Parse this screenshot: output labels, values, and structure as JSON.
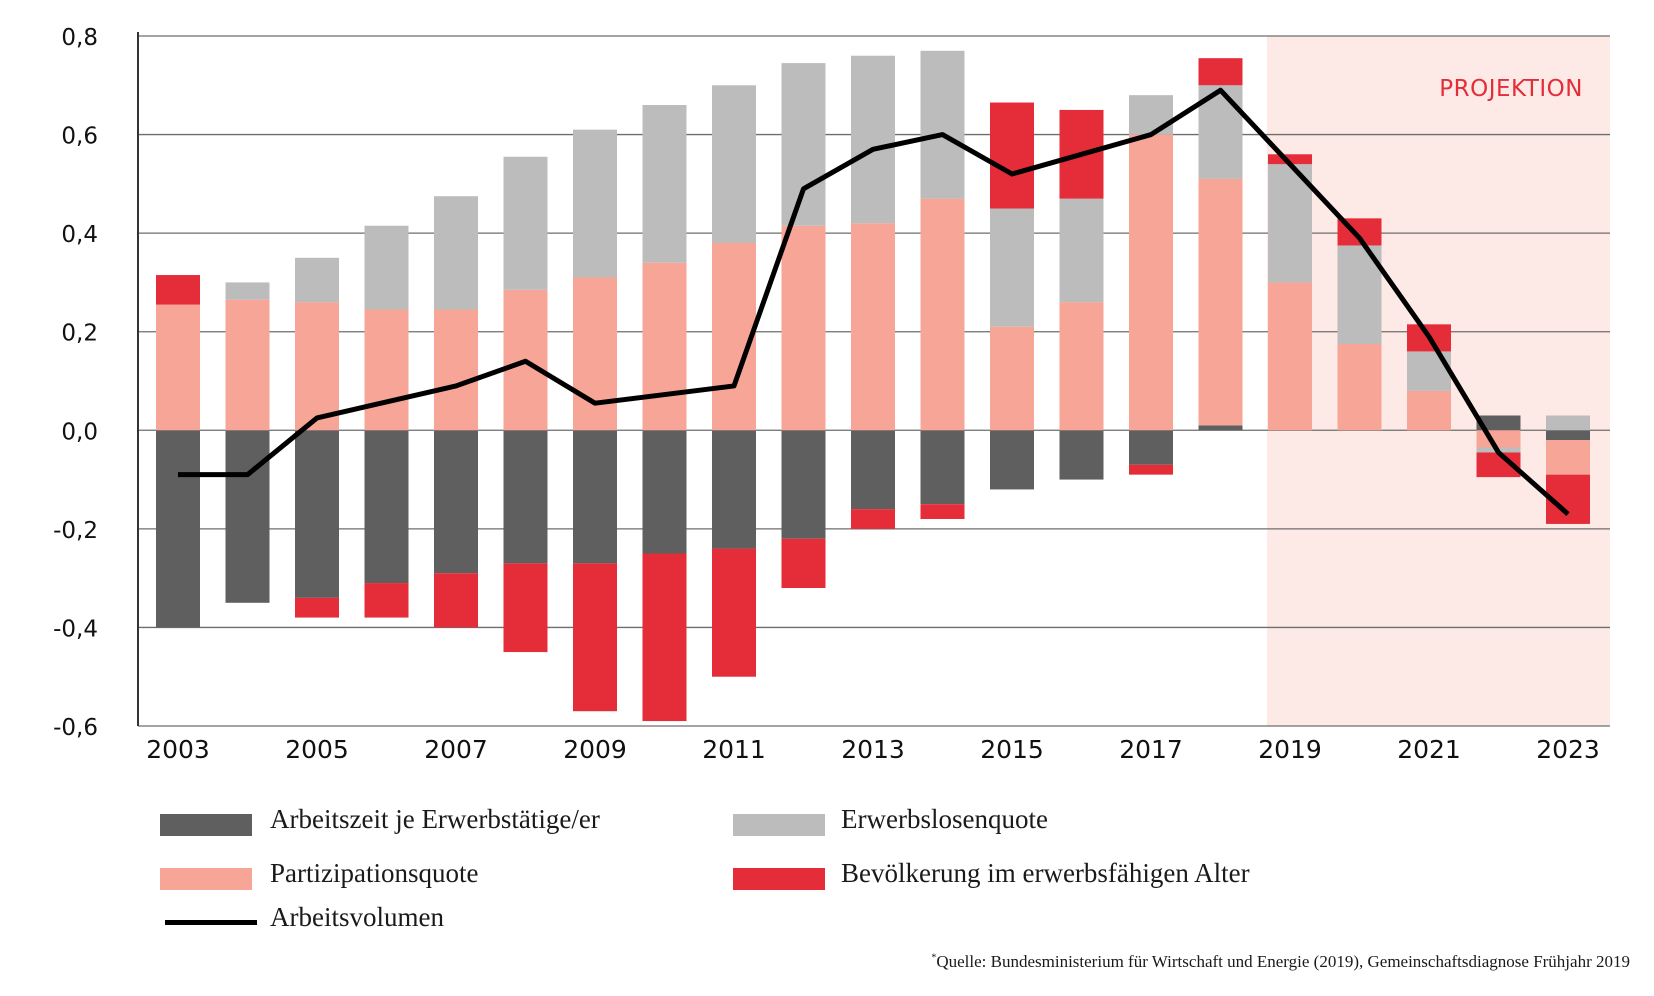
{
  "chart_data": {
    "type": "bar",
    "stacked": true,
    "title": "",
    "xlabel": "",
    "ylabel": "",
    "ylim": [
      -0.6,
      0.8
    ],
    "yticks": [
      0.8,
      0.6,
      0.4,
      0.2,
      0.0,
      -0.2,
      -0.4,
      -0.6
    ],
    "ytick_labels": [
      "0,8",
      "0,6",
      "0,4",
      "0,2",
      "0,0",
      "-0,2",
      "-0,4",
      "-0,6"
    ],
    "grid": "horizontal",
    "categories": [
      2003,
      2004,
      2005,
      2006,
      2007,
      2008,
      2009,
      2010,
      2011,
      2012,
      2013,
      2014,
      2015,
      2016,
      2017,
      2018,
      2019,
      2020,
      2021,
      2022,
      2023
    ],
    "xtick_labels": [
      "2003",
      "2005",
      "2007",
      "2009",
      "2011",
      "2013",
      "2015",
      "2017",
      "2019",
      "2021",
      "2023"
    ],
    "projection": {
      "label": "PROJEKTION",
      "from_year": 2019,
      "color": "#fdeae6"
    },
    "series": [
      {
        "name": "Arbeitszeit je Erwerbstätige/er",
        "color": "#5f5f5f",
        "values": [
          -0.4,
          -0.35,
          -0.34,
          -0.31,
          -0.29,
          -0.27,
          -0.27,
          -0.25,
          -0.24,
          -0.22,
          -0.16,
          -0.15,
          -0.12,
          -0.1,
          -0.07,
          0.01,
          0.0,
          0.0,
          0.0,
          0.03,
          -0.02
        ]
      },
      {
        "name": "Partizipationsquote",
        "color": "#f6a597",
        "values": [
          0.255,
          0.265,
          0.26,
          0.245,
          0.245,
          0.285,
          0.31,
          0.34,
          0.38,
          0.415,
          0.42,
          0.47,
          0.21,
          0.26,
          0.6,
          0.5,
          0.3,
          0.175,
          0.08,
          -0.035,
          -0.07
        ]
      },
      {
        "name": "Erwerbslosenquote",
        "color": "#bcbcbc",
        "values": [
          0.0,
          0.035,
          0.09,
          0.17,
          0.23,
          0.27,
          0.3,
          0.32,
          0.32,
          0.33,
          0.34,
          0.3,
          0.24,
          0.21,
          0.08,
          0.19,
          0.24,
          0.2,
          0.08,
          -0.01,
          0.03
        ]
      },
      {
        "name": "Bevölkerung im erwerbsfähigen Alter",
        "color": "#e52d3a",
        "values": [
          0.06,
          0.0,
          -0.04,
          -0.07,
          -0.11,
          -0.18,
          -0.3,
          -0.34,
          -0.26,
          -0.1,
          -0.04,
          -0.03,
          0.215,
          0.18,
          -0.02,
          0.055,
          0.02,
          0.055,
          0.055,
          -0.05,
          -0.1
        ]
      }
    ],
    "line": {
      "name": "Arbeitsvolumen",
      "color": "#000000",
      "values": [
        -0.09,
        -0.09,
        0.025,
        0.09,
        0.14,
        0.055,
        0.09,
        0.49,
        0.57,
        0.6,
        0.52,
        0.56,
        0.6,
        0.69,
        0.54,
        0.39,
        0.19,
        -0.045,
        -0.17
      ],
      "x": [
        2003,
        2004,
        2005,
        2007,
        2008,
        2009,
        2011,
        2012,
        2013,
        2014,
        2015,
        2016,
        2017,
        2018,
        2019,
        2020,
        2021,
        2022,
        2023
      ]
    }
  },
  "legend": {
    "items": [
      {
        "label": "Arbeitszeit je Erwerbstätige/er",
        "color": "#5f5f5f",
        "kind": "bar"
      },
      {
        "label": "Erwerbslosenquote",
        "color": "#bcbcbc",
        "kind": "bar"
      },
      {
        "label": "Partizipationsquote",
        "color": "#f6a597",
        "kind": "bar"
      },
      {
        "label": "Bevölkerung im erwerbsfähigen Alter",
        "color": "#e52d3a",
        "kind": "bar"
      },
      {
        "label": "Arbeitsvolumen",
        "color": "#000000",
        "kind": "line"
      }
    ]
  },
  "source": {
    "marker": "*",
    "text": "Quelle: Bundesministerium für Wirtschaft und Energie (2019), Gemeinschaftsdiagnose Frühjahr 2019"
  }
}
